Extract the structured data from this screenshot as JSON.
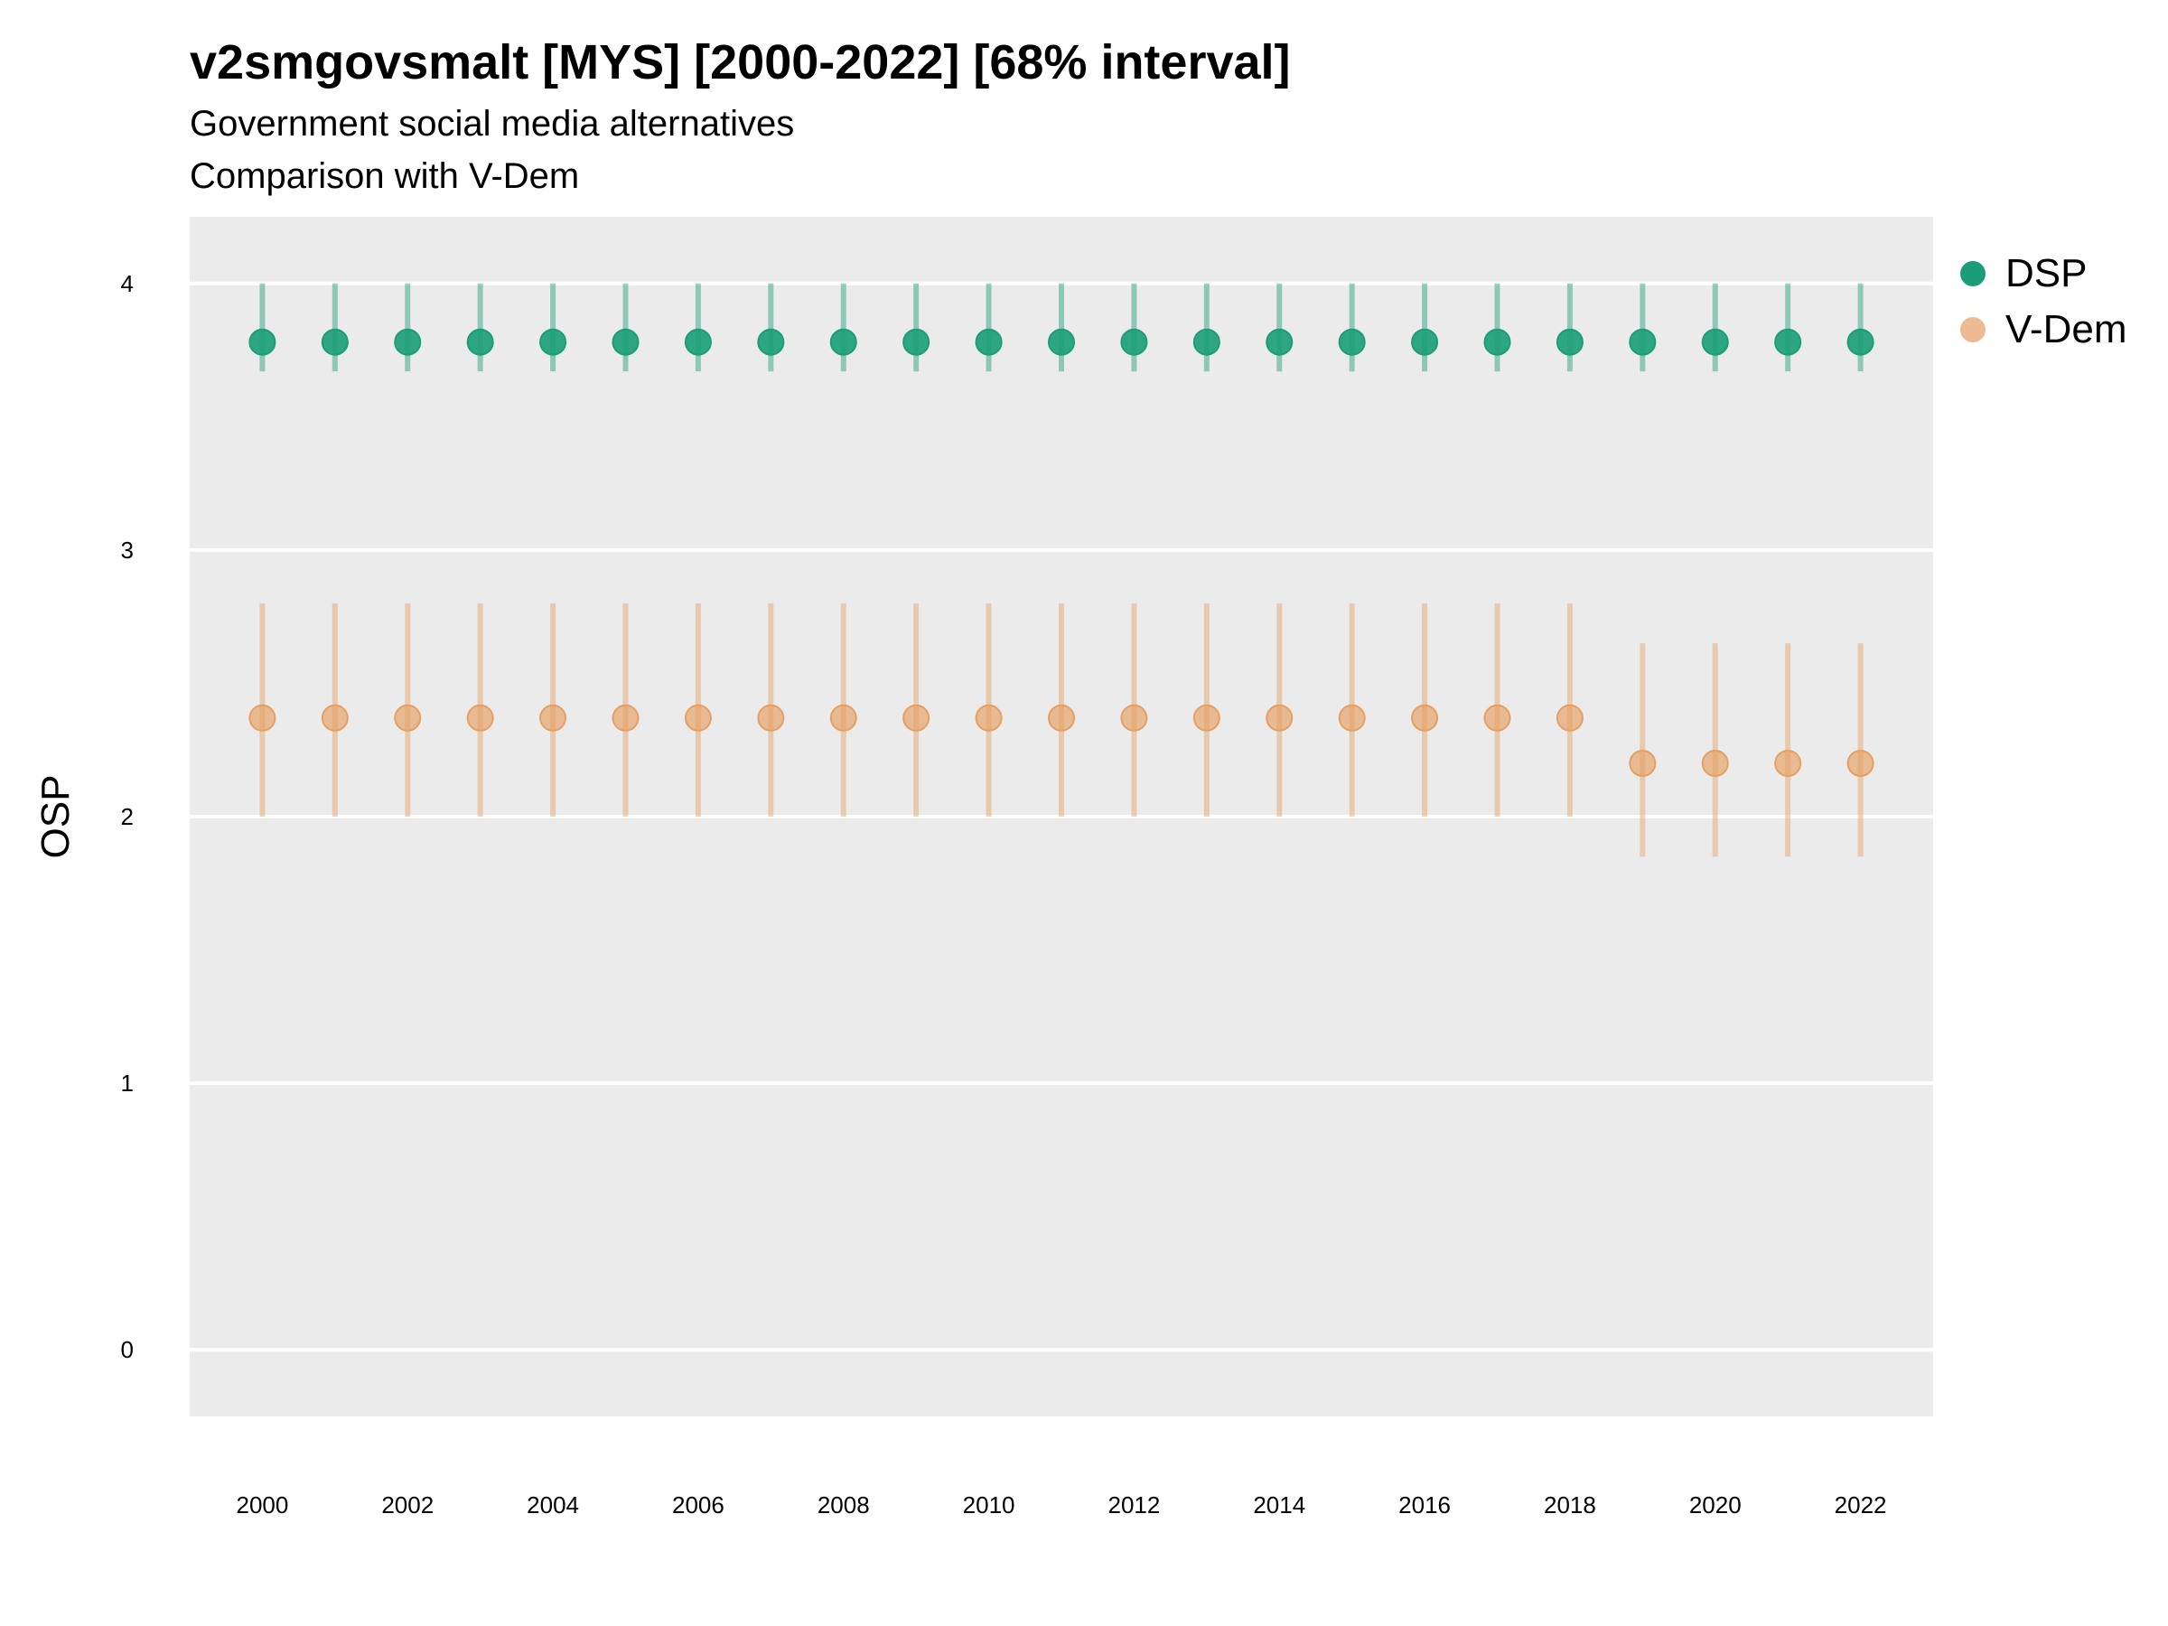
{
  "chart_data": {
    "type": "scatter",
    "title": "v2smgovsmalt [MYS] [2000-2022] [68% interval]",
    "subtitle": "Government social media alternatives",
    "subtitle2": "Comparison with V-Dem",
    "xlabel": "",
    "ylabel": "OSP",
    "xlim": [
      1999,
      2023
    ],
    "ylim": [
      -0.25,
      4.25
    ],
    "x_ticks": [
      "2000",
      "2002",
      "2004",
      "2006",
      "2008",
      "2010",
      "2012",
      "2014",
      "2016",
      "2018",
      "2020",
      "2022"
    ],
    "y_ticks": [
      "0",
      "1",
      "2",
      "3",
      "4"
    ],
    "grid": true,
    "legend_position": "right",
    "x": [
      2000,
      2001,
      2002,
      2003,
      2004,
      2005,
      2006,
      2007,
      2008,
      2009,
      2010,
      2011,
      2012,
      2013,
      2014,
      2015,
      2016,
      2017,
      2018,
      2019,
      2020,
      2021,
      2022
    ],
    "series": [
      {
        "name": "DSP",
        "color": "#1b9e77",
        "values": [
          3.78,
          3.78,
          3.78,
          3.78,
          3.78,
          3.78,
          3.78,
          3.78,
          3.78,
          3.78,
          3.78,
          3.78,
          3.78,
          3.78,
          3.78,
          3.78,
          3.78,
          3.78,
          3.78,
          3.78,
          3.78,
          3.78,
          3.78
        ],
        "lower": [
          3.67,
          3.67,
          3.67,
          3.67,
          3.67,
          3.67,
          3.67,
          3.67,
          3.67,
          3.67,
          3.67,
          3.67,
          3.67,
          3.67,
          3.67,
          3.67,
          3.67,
          3.67,
          3.67,
          3.67,
          3.67,
          3.67,
          3.67
        ],
        "upper": [
          4.0,
          4.0,
          4.0,
          4.0,
          4.0,
          4.0,
          4.0,
          4.0,
          4.0,
          4.0,
          4.0,
          4.0,
          4.0,
          4.0,
          4.0,
          4.0,
          4.0,
          4.0,
          4.0,
          4.0,
          4.0,
          4.0,
          4.0
        ]
      },
      {
        "name": "V-Dem",
        "color": "#e69f63",
        "values": [
          2.37,
          2.37,
          2.37,
          2.37,
          2.37,
          2.37,
          2.37,
          2.37,
          2.37,
          2.37,
          2.37,
          2.37,
          2.37,
          2.37,
          2.37,
          2.37,
          2.37,
          2.37,
          2.37,
          2.2,
          2.2,
          2.2,
          2.2
        ],
        "lower": [
          2.0,
          2.0,
          2.0,
          2.0,
          2.0,
          2.0,
          2.0,
          2.0,
          2.0,
          2.0,
          2.0,
          2.0,
          2.0,
          2.0,
          2.0,
          2.0,
          2.0,
          2.0,
          2.0,
          1.85,
          1.85,
          1.85,
          1.85
        ],
        "upper": [
          2.8,
          2.8,
          2.8,
          2.8,
          2.8,
          2.8,
          2.8,
          2.8,
          2.8,
          2.8,
          2.8,
          2.8,
          2.8,
          2.8,
          2.8,
          2.8,
          2.8,
          2.8,
          2.8,
          2.65,
          2.65,
          2.65,
          2.65
        ]
      }
    ]
  }
}
